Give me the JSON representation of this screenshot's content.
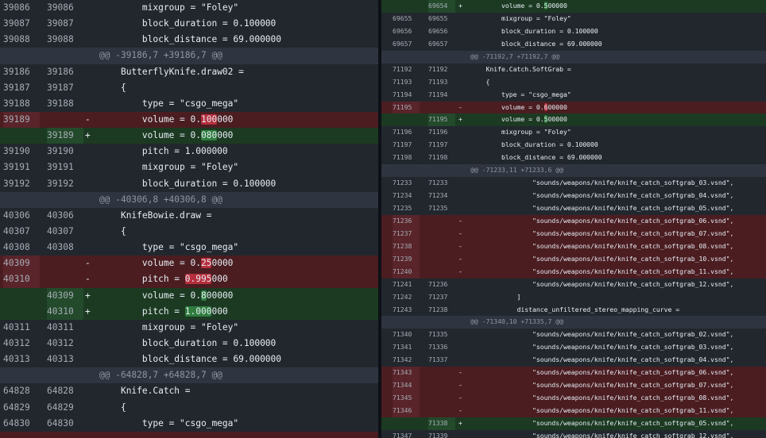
{
  "left_pane": {
    "lines": [
      {
        "type": "ctx",
        "old": "39086",
        "new": "39086",
        "sign": "",
        "indent": "        ",
        "text": "mixgroup = \"Foley\""
      },
      {
        "type": "ctx",
        "old": "39087",
        "new": "39087",
        "sign": "",
        "indent": "        ",
        "text": "block_duration = 0.100000"
      },
      {
        "type": "ctx",
        "old": "39088",
        "new": "39088",
        "sign": "",
        "indent": "        ",
        "text": "block_distance = 69.000000"
      },
      {
        "type": "hunk",
        "old": "",
        "new": "",
        "sign": "",
        "indent": "",
        "text": "@@ -39186,7 +39186,7 @@"
      },
      {
        "type": "ctx",
        "old": "39186",
        "new": "39186",
        "sign": "",
        "indent": "    ",
        "text": "ButterflyKnife.draw02 ="
      },
      {
        "type": "ctx",
        "old": "39187",
        "new": "39187",
        "sign": "",
        "indent": "    ",
        "text": "{"
      },
      {
        "type": "ctx",
        "old": "39188",
        "new": "39188",
        "sign": "",
        "indent": "        ",
        "text": "type = \"csgo_mega\""
      },
      {
        "type": "del",
        "old": "39189",
        "new": "",
        "sign": "-",
        "indent": "        ",
        "text": "volume = 0.",
        "hl": "100",
        "tail": "000"
      },
      {
        "type": "add",
        "old": "",
        "new": "39189",
        "sign": "+",
        "indent": "        ",
        "text": "volume = 0.",
        "hl": "080",
        "tail": "000"
      },
      {
        "type": "ctx",
        "old": "39190",
        "new": "39190",
        "sign": "",
        "indent": "        ",
        "text": "pitch = 1.000000"
      },
      {
        "type": "ctx",
        "old": "39191",
        "new": "39191",
        "sign": "",
        "indent": "        ",
        "text": "mixgroup = \"Foley\""
      },
      {
        "type": "ctx",
        "old": "39192",
        "new": "39192",
        "sign": "",
        "indent": "        ",
        "text": "block_duration = 0.100000"
      },
      {
        "type": "hunk",
        "old": "",
        "new": "",
        "sign": "",
        "indent": "",
        "text": "@@ -40306,8 +40306,8 @@"
      },
      {
        "type": "ctx",
        "old": "40306",
        "new": "40306",
        "sign": "",
        "indent": "    ",
        "text": "KnifeBowie.draw ="
      },
      {
        "type": "ctx",
        "old": "40307",
        "new": "40307",
        "sign": "",
        "indent": "    ",
        "text": "{"
      },
      {
        "type": "ctx",
        "old": "40308",
        "new": "40308",
        "sign": "",
        "indent": "        ",
        "text": "type = \"csgo_mega\""
      },
      {
        "type": "del",
        "old": "40309",
        "new": "",
        "sign": "-",
        "indent": "        ",
        "text": "volume = 0.",
        "hl": "25",
        "tail": "0000"
      },
      {
        "type": "del",
        "old": "40310",
        "new": "",
        "sign": "-",
        "indent": "        ",
        "text": "pitch = ",
        "hl": "0.995",
        "tail": "000"
      },
      {
        "type": "add",
        "old": "",
        "new": "40309",
        "sign": "+",
        "indent": "        ",
        "text": "volume = 0.",
        "hl": "8",
        "tail": "00000"
      },
      {
        "type": "add",
        "old": "",
        "new": "40310",
        "sign": "+",
        "indent": "        ",
        "text": "pitch = ",
        "hl": "1.000",
        "tail": "000"
      },
      {
        "type": "ctx",
        "old": "40311",
        "new": "40311",
        "sign": "",
        "indent": "        ",
        "text": "mixgroup = \"Foley\""
      },
      {
        "type": "ctx",
        "old": "40312",
        "new": "40312",
        "sign": "",
        "indent": "        ",
        "text": "block_duration = 0.100000"
      },
      {
        "type": "ctx",
        "old": "40313",
        "new": "40313",
        "sign": "",
        "indent": "        ",
        "text": "block_distance = 69.000000"
      },
      {
        "type": "hunk",
        "old": "",
        "new": "",
        "sign": "",
        "indent": "",
        "text": "@@ -64828,7 +64828,7 @@"
      },
      {
        "type": "ctx",
        "old": "64828",
        "new": "64828",
        "sign": "",
        "indent": "    ",
        "text": "Knife.Catch ="
      },
      {
        "type": "ctx",
        "old": "64829",
        "new": "64829",
        "sign": "",
        "indent": "    ",
        "text": "{"
      },
      {
        "type": "ctx",
        "old": "64830",
        "new": "64830",
        "sign": "",
        "indent": "        ",
        "text": "type = \"csgo_mega\""
      },
      {
        "type": "del",
        "old": "",
        "new": "",
        "sign": "",
        "indent": "",
        "text": ""
      }
    ]
  },
  "right_pane": {
    "lines": [
      {
        "type": "add",
        "old": "",
        "new": "69654",
        "sign": "+",
        "indent": "        ",
        "text": "volume = 0.",
        "hl": "5",
        "tail": "00000"
      },
      {
        "type": "ctx",
        "old": "69655",
        "new": "69655",
        "sign": "",
        "indent": "        ",
        "text": "mixgroup = \"Foley\""
      },
      {
        "type": "ctx",
        "old": "69656",
        "new": "69656",
        "sign": "",
        "indent": "        ",
        "text": "block_duration = 0.100000"
      },
      {
        "type": "ctx",
        "old": "69657",
        "new": "69657",
        "sign": "",
        "indent": "        ",
        "text": "block_distance = 69.000000"
      },
      {
        "type": "hunk",
        "old": "",
        "new": "",
        "sign": "",
        "indent": "",
        "text": "@@ -71192,7 +71192,7 @@"
      },
      {
        "type": "ctx",
        "old": "71192",
        "new": "71192",
        "sign": "",
        "indent": "    ",
        "text": "Knife.Catch.SoftGrab ="
      },
      {
        "type": "ctx",
        "old": "71193",
        "new": "71193",
        "sign": "",
        "indent": "    ",
        "text": "{"
      },
      {
        "type": "ctx",
        "old": "71194",
        "new": "71194",
        "sign": "",
        "indent": "        ",
        "text": "type = \"csgo_mega\""
      },
      {
        "type": "del",
        "old": "71195",
        "new": "",
        "sign": "-",
        "indent": "        ",
        "text": "volume = 0.",
        "hl": "6",
        "tail": "00000"
      },
      {
        "type": "add",
        "old": "",
        "new": "71195",
        "sign": "+",
        "indent": "        ",
        "text": "volume = 0.",
        "hl": "5",
        "tail": "00000"
      },
      {
        "type": "ctx",
        "old": "71196",
        "new": "71196",
        "sign": "",
        "indent": "        ",
        "text": "mixgroup = \"Foley\""
      },
      {
        "type": "ctx",
        "old": "71197",
        "new": "71197",
        "sign": "",
        "indent": "        ",
        "text": "block_duration = 0.100000"
      },
      {
        "type": "ctx",
        "old": "71198",
        "new": "71198",
        "sign": "",
        "indent": "        ",
        "text": "block_distance = 69.000000"
      },
      {
        "type": "hunk",
        "old": "",
        "new": "",
        "sign": "",
        "indent": "",
        "text": "@@ -71233,11 +71233,6 @@"
      },
      {
        "type": "ctx",
        "old": "71233",
        "new": "71233",
        "sign": "",
        "indent": "                ",
        "text": "\"sounds/weapons/knife/knife_catch_softgrab_03.vsnd\","
      },
      {
        "type": "ctx",
        "old": "71234",
        "new": "71234",
        "sign": "",
        "indent": "                ",
        "text": "\"sounds/weapons/knife/knife_catch_softgrab_04.vsnd\","
      },
      {
        "type": "ctx",
        "old": "71235",
        "new": "71235",
        "sign": "",
        "indent": "                ",
        "text": "\"sounds/weapons/knife/knife_catch_softgrab_05.vsnd\","
      },
      {
        "type": "del",
        "old": "71236",
        "new": "",
        "sign": "-",
        "indent": "                ",
        "text": "\"sounds/weapons/knife/knife_catch_softgrab_06.vsnd\","
      },
      {
        "type": "del",
        "old": "71237",
        "new": "",
        "sign": "-",
        "indent": "                ",
        "text": "\"sounds/weapons/knife/knife_catch_softgrab_07.vsnd\","
      },
      {
        "type": "del",
        "old": "71238",
        "new": "",
        "sign": "-",
        "indent": "                ",
        "text": "\"sounds/weapons/knife/knife_catch_softgrab_08.vsnd\","
      },
      {
        "type": "del",
        "old": "71239",
        "new": "",
        "sign": "-",
        "indent": "                ",
        "text": "\"sounds/weapons/knife/knife_catch_softgrab_10.vsnd\","
      },
      {
        "type": "del",
        "old": "71240",
        "new": "",
        "sign": "-",
        "indent": "                ",
        "text": "\"sounds/weapons/knife/knife_catch_softgrab_11.vsnd\","
      },
      {
        "type": "ctx",
        "old": "71241",
        "new": "71236",
        "sign": "",
        "indent": "                ",
        "text": "\"sounds/weapons/knife/knife_catch_softgrab_12.vsnd\","
      },
      {
        "type": "ctx",
        "old": "71242",
        "new": "71237",
        "sign": "",
        "indent": "            ",
        "text": "]"
      },
      {
        "type": "ctx",
        "old": "71243",
        "new": "71238",
        "sign": "",
        "indent": "            ",
        "text": "distance_unfiltered_stereo_mapping_curve ="
      },
      {
        "type": "hunk",
        "old": "",
        "new": "",
        "sign": "",
        "indent": "",
        "text": "@@ -71340,10 +71335,7 @@"
      },
      {
        "type": "ctx",
        "old": "71340",
        "new": "71335",
        "sign": "",
        "indent": "                ",
        "text": "\"sounds/weapons/knife/knife_catch_softgrab_02.vsnd\","
      },
      {
        "type": "ctx",
        "old": "71341",
        "new": "71336",
        "sign": "",
        "indent": "                ",
        "text": "\"sounds/weapons/knife/knife_catch_softgrab_03.vsnd\","
      },
      {
        "type": "ctx",
        "old": "71342",
        "new": "71337",
        "sign": "",
        "indent": "                ",
        "text": "\"sounds/weapons/knife/knife_catch_softgrab_04.vsnd\","
      },
      {
        "type": "del",
        "old": "71343",
        "new": "",
        "sign": "-",
        "indent": "                ",
        "text": "\"sounds/weapons/knife/knife_catch_softgrab_06.vsnd\","
      },
      {
        "type": "del",
        "old": "71344",
        "new": "",
        "sign": "-",
        "indent": "                ",
        "text": "\"sounds/weapons/knife/knife_catch_softgrab_07.vsnd\","
      },
      {
        "type": "del",
        "old": "71345",
        "new": "",
        "sign": "-",
        "indent": "                ",
        "text": "\"sounds/weapons/knife/knife_catch_softgrab_08.vsnd\","
      },
      {
        "type": "del",
        "old": "71346",
        "new": "",
        "sign": "-",
        "indent": "                ",
        "text": "\"sounds/weapons/knife/knife_catch_softgrab_11.vsnd\","
      },
      {
        "type": "add",
        "old": "",
        "new": "71338",
        "sign": "+",
        "indent": "                ",
        "text": "\"sounds/weapons/knife/knife_catch_softgrab_05.vsnd\","
      },
      {
        "type": "ctx",
        "old": "71347",
        "new": "71339",
        "sign": "",
        "indent": "                ",
        "text": "\"sounds/weapons/knife/knife_catch_softgrab_12.vsnd\","
      }
    ]
  }
}
